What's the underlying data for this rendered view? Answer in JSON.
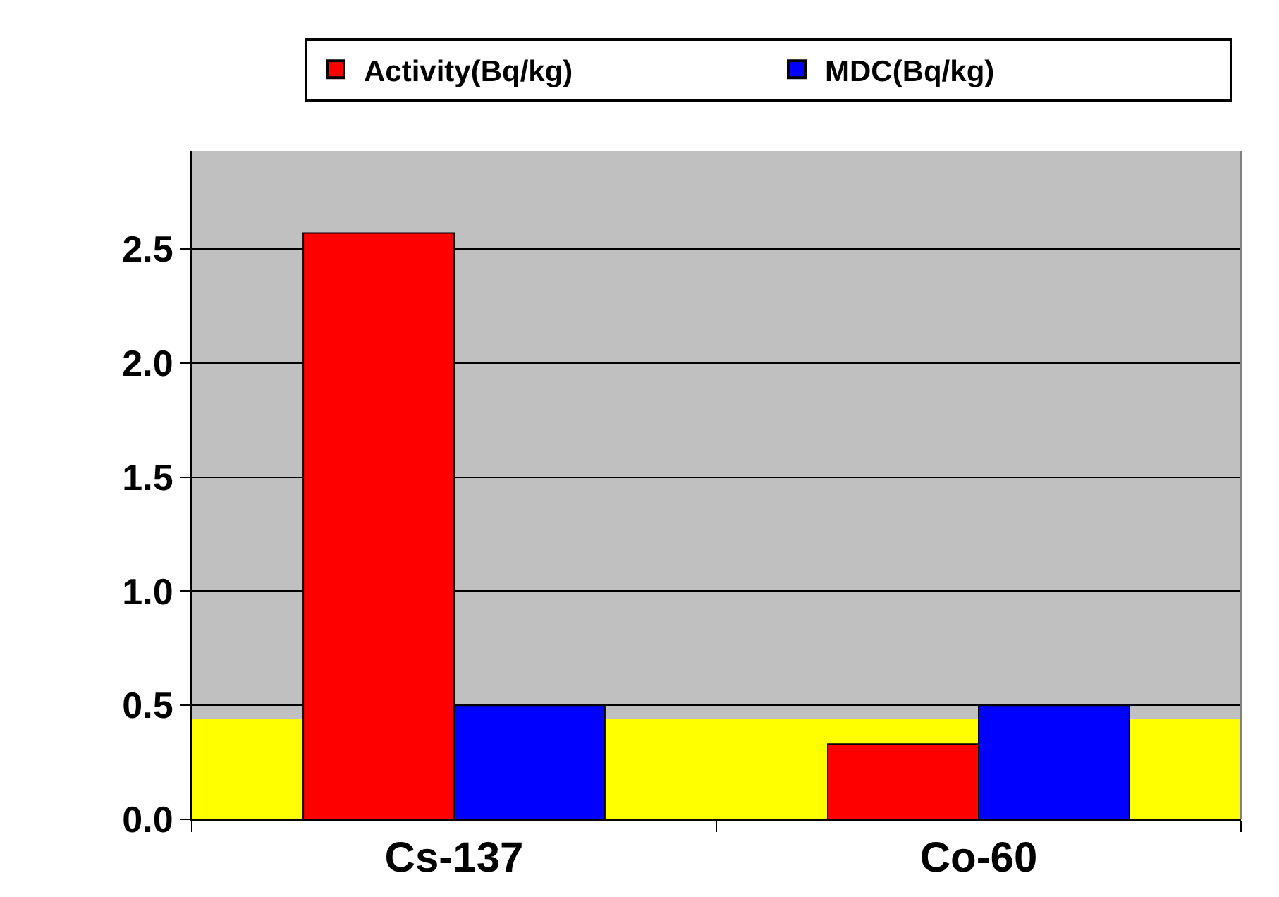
{
  "chart_data": {
    "type": "bar",
    "categories": [
      "Cs-137",
      "Co-60"
    ],
    "series": [
      {
        "name": "Activity(Bq/kg)",
        "color": "#ff0000",
        "values": [
          2.57,
          0.33
        ]
      },
      {
        "name": "MDC(Bq/kg)",
        "color": "#0000ff",
        "values": [
          0.5,
          0.5
        ]
      }
    ],
    "ylim": [
      0,
      2.93
    ],
    "yticks": [
      {
        "value": 0,
        "label": "0.0"
      },
      0.5,
      {
        "value": 1,
        "label": "1.0"
      },
      1.5,
      {
        "value": 2,
        "label": "2.0"
      },
      2.5
    ],
    "grid": "y",
    "legend": "top",
    "bands": [
      {
        "axis": "y",
        "from": 0,
        "to": 0.44,
        "color": "#ffff00"
      }
    ]
  }
}
